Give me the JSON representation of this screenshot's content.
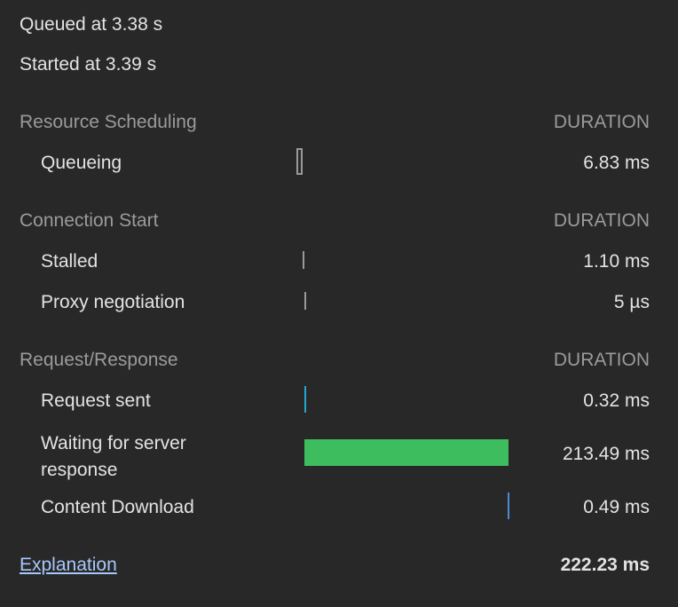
{
  "queued_at": "Queued at 3.38 s",
  "started_at": "Started at 3.39 s",
  "total_ms": 222.23,
  "colors": {
    "queueing": "#9a9a9a",
    "stalled": "#9a9a9a",
    "proxy": "#9a9a9a",
    "request": "#22a8d0",
    "waiting": "#3dbd5e",
    "download": "#4d88d9"
  },
  "sections": [
    {
      "title": "Resource Scheduling",
      "duration_header": "DURATION",
      "rows": [
        {
          "label": "Queueing",
          "value": "6.83 ms",
          "start_ms": 0,
          "duration_ms": 6.83,
          "style": "outline",
          "color_key": "queueing"
        }
      ]
    },
    {
      "title": "Connection Start",
      "duration_header": "DURATION",
      "rows": [
        {
          "label": "Stalled",
          "value": "1.10 ms",
          "start_ms": 6.83,
          "duration_ms": 1.1,
          "style": "fill",
          "color_key": "stalled"
        },
        {
          "label": "Proxy negotiation",
          "value": "5 µs",
          "start_ms": 7.93,
          "duration_ms": 0.005,
          "style": "fill",
          "color_key": "proxy"
        }
      ]
    },
    {
      "title": "Request/Response",
      "duration_header": "DURATION",
      "rows": [
        {
          "label": "Request sent",
          "value": "0.32 ms",
          "start_ms": 7.94,
          "duration_ms": 0.32,
          "style": "fill",
          "color_key": "request"
        },
        {
          "label": "Waiting for server response",
          "value": "213.49 ms",
          "start_ms": 8.26,
          "duration_ms": 213.49,
          "style": "fill",
          "color_key": "waiting"
        },
        {
          "label": "Content Download",
          "value": "0.49 ms",
          "start_ms": 221.75,
          "duration_ms": 0.49,
          "style": "fill",
          "color_key": "download"
        }
      ]
    }
  ],
  "footer": {
    "link": "Explanation",
    "total": "222.23 ms"
  }
}
